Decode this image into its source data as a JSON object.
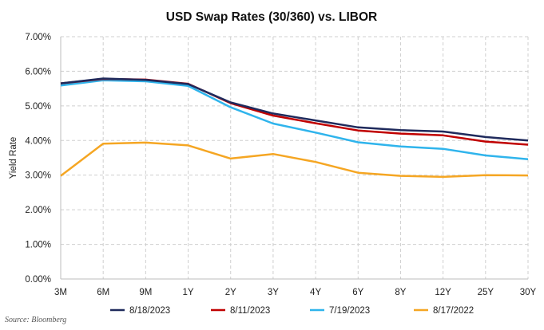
{
  "chart_data": {
    "type": "line",
    "title": "USD Swap Rates (30/360) vs. LIBOR",
    "xlabel": "",
    "ylabel": "Yield Rate",
    "categories": [
      "3M",
      "6M",
      "9M",
      "1Y",
      "2Y",
      "3Y",
      "4Y",
      "6Y",
      "8Y",
      "12Y",
      "25Y",
      "30Y"
    ],
    "ylim": [
      0,
      7
    ],
    "yticks": [
      "0.00%",
      "1.00%",
      "2.00%",
      "3.00%",
      "4.00%",
      "5.00%",
      "6.00%",
      "7.00%"
    ],
    "grid": true,
    "legend_position": "bottom",
    "series": [
      {
        "name": "8/18/2023",
        "color": "#1f2a5c",
        "values": [
          5.65,
          5.79,
          5.75,
          5.63,
          5.1,
          4.78,
          4.58,
          4.38,
          4.3,
          4.26,
          4.1,
          4.0
        ]
      },
      {
        "name": "8/11/2023",
        "color": "#c00000",
        "values": [
          5.65,
          5.78,
          5.76,
          5.64,
          5.08,
          4.72,
          4.5,
          4.29,
          4.2,
          4.15,
          3.97,
          3.88
        ]
      },
      {
        "name": "7/19/2023",
        "color": "#2fb4ec",
        "values": [
          5.59,
          5.74,
          5.71,
          5.58,
          4.96,
          4.49,
          4.23,
          3.95,
          3.83,
          3.76,
          3.57,
          3.46
        ]
      },
      {
        "name": "8/17/2022",
        "color": "#f5a623",
        "values": [
          2.98,
          3.91,
          3.94,
          3.86,
          3.48,
          3.61,
          3.38,
          3.07,
          2.98,
          2.95,
          3.0,
          2.99
        ]
      }
    ]
  },
  "source": "Source: Bloomberg"
}
